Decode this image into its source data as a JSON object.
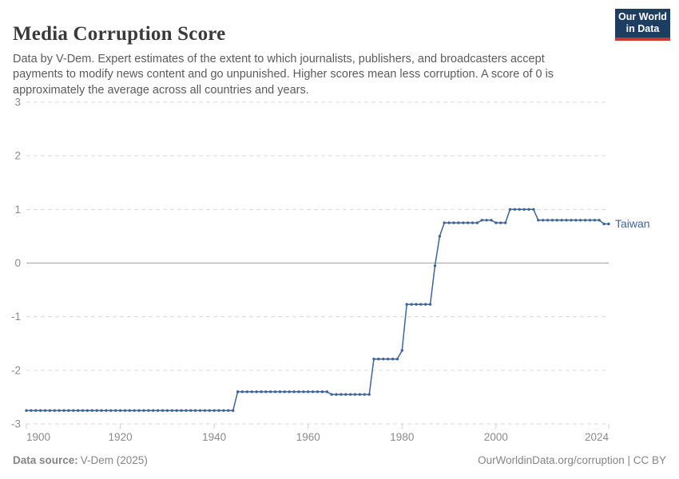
{
  "header": {
    "title": "Media Corruption Score",
    "subtitle": "Data by V-Dem. Expert estimates of the extent to which journalists, publishers, and broadcasters accept payments to modify news content and go unpunished. Higher scores mean less corruption. A score of 0 is approximately the average across all countries and years.",
    "logo": {
      "line1": "Our World",
      "line2": "in Data",
      "bg_color": "#1d3d63",
      "accent_color": "#cd3731"
    }
  },
  "chart_data": {
    "type": "line",
    "title": "Media Corruption Score",
    "xlabel": "",
    "ylabel": "",
    "xlim": [
      1900,
      2024
    ],
    "ylim": [
      -3,
      3
    ],
    "x_ticks": [
      1900,
      1920,
      1940,
      1960,
      1980,
      2000,
      2024
    ],
    "y_ticks": [
      3,
      2,
      1,
      0,
      -1,
      -2,
      -3
    ],
    "grid": "horizontal dashed, solid zero line",
    "legend": "inline label at line end",
    "series": [
      {
        "name": "Taiwan",
        "color": "#3e649c",
        "marker": "point-per-year",
        "segments_format": "[start_year, end_year, value] (value constant for each year in range)",
        "segments": [
          [
            1900,
            1944,
            -2.75
          ],
          [
            1945,
            1964,
            -2.4
          ],
          [
            1965,
            1973,
            -2.45
          ],
          [
            1974,
            1979,
            -1.79
          ],
          [
            1980,
            1980,
            -1.63
          ],
          [
            1981,
            1986,
            -0.77
          ],
          [
            1987,
            1987,
            -0.05
          ],
          [
            1988,
            1988,
            0.5
          ],
          [
            1989,
            1996,
            0.75
          ],
          [
            1997,
            1999,
            0.8
          ],
          [
            2000,
            2002,
            0.75
          ],
          [
            2003,
            2008,
            1.0
          ],
          [
            2009,
            2022,
            0.8
          ],
          [
            2023,
            2024,
            0.73
          ]
        ]
      }
    ],
    "style": {
      "grid_color": "#d9d9d9",
      "zero_line_color": "#a6a6a6",
      "tick_mark_color": "#cfcfcf",
      "tick_label_color": "#8a8a8a"
    }
  },
  "footer": {
    "source_prefix": "Data source:",
    "source": "V-Dem (2025)",
    "credit": "OurWorldinData.org/corruption | CC BY"
  }
}
